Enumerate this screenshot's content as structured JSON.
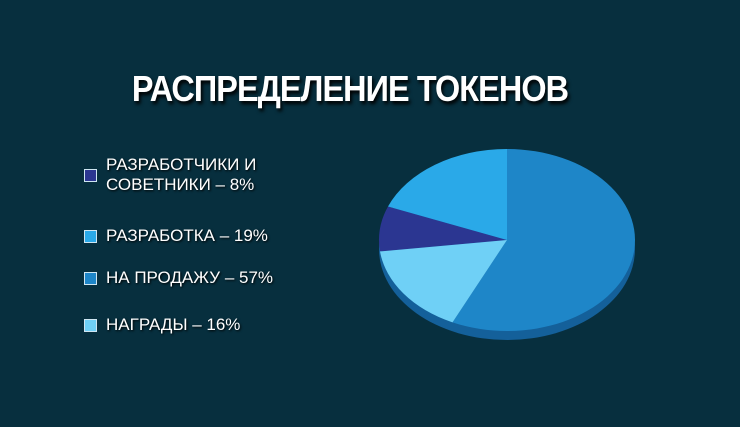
{
  "chart_data": {
    "type": "pie",
    "title": "РАСПРЕДЕЛЕНИЕ ТОКЕНОВ",
    "categories": [
      "РАЗРАБОТЧИКИ И СОВЕТНИКИ",
      "РАЗРАБОТКА",
      "НА ПРОДАЖУ",
      "НАГРАДЫ"
    ],
    "values": [
      8,
      19,
      57,
      16
    ],
    "value_labels": [
      "РАЗРАБОТЧИКИ И СОВЕТНИКИ – 8%",
      "РАЗРАБОТКА – 19%",
      "НА ПРОДАЖУ – 57%",
      "НАГРАДЫ – 16%"
    ],
    "colors": [
      "#2b3691",
      "#2aa9e8",
      "#1e86c8",
      "#6fd0f6"
    ]
  }
}
